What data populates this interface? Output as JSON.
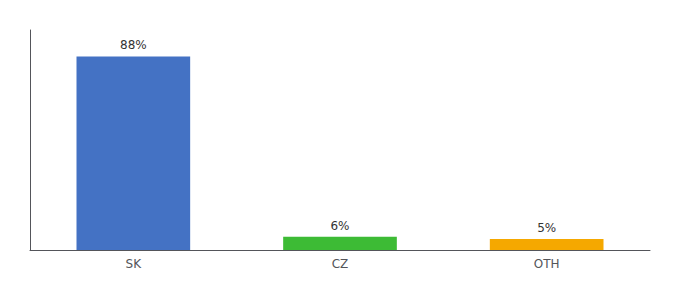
{
  "chart_data": {
    "type": "bar",
    "categories": [
      "SK",
      "CZ",
      "OTH"
    ],
    "values": [
      88,
      6,
      5
    ],
    "value_labels": [
      "88%",
      "6%",
      "5%"
    ],
    "data_labels": true,
    "colors": [
      "#4472c4",
      "#3dbb35",
      "#f5a800"
    ],
    "ylim": [
      0,
      100
    ],
    "grid": false,
    "tick_labels": "x"
  }
}
